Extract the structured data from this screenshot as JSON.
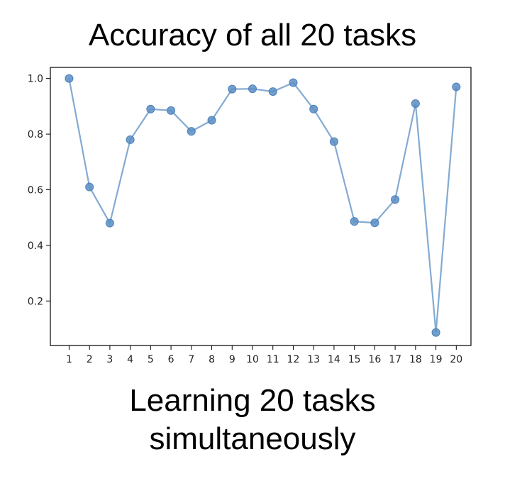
{
  "title": "Accuracy of all 20 tasks",
  "caption": {
    "line1": "Learning 20 tasks",
    "line2": "simultaneously"
  },
  "chart_data": {
    "type": "line",
    "title": "",
    "xlabel": "",
    "ylabel": "",
    "x": [
      1,
      2,
      3,
      4,
      5,
      6,
      7,
      8,
      9,
      10,
      11,
      12,
      13,
      14,
      15,
      16,
      17,
      18,
      19,
      20
    ],
    "series": [
      {
        "values": [
          1.0,
          0.61,
          0.48,
          0.78,
          0.89,
          0.885,
          0.81,
          0.85,
          0.962,
          0.963,
          0.953,
          0.985,
          0.89,
          0.773,
          0.486,
          0.481,
          0.565,
          0.91,
          0.087,
          0.97
        ],
        "color": "#5b8ec4"
      }
    ],
    "x_ticks": [
      "1",
      "2",
      "3",
      "4",
      "5",
      "6",
      "7",
      "8",
      "9",
      "10",
      "11",
      "12",
      "13",
      "14",
      "15",
      "16",
      "17",
      "18",
      "19",
      "20"
    ],
    "y_ticks": [
      "0.2",
      "0.4",
      "0.6",
      "0.8",
      "1.0"
    ],
    "ylim": [
      0.04,
      1.04
    ],
    "grid": false,
    "marker": "circle"
  }
}
